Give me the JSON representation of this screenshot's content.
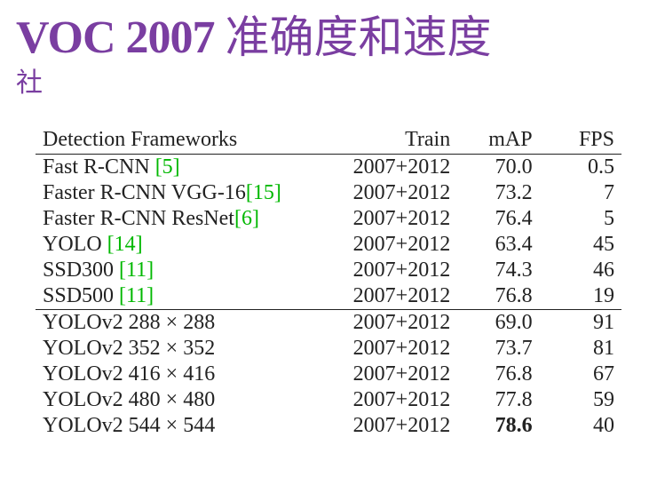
{
  "title": {
    "main": "VOC 2007",
    "rest": "准确度和速度",
    "subtitle_fragment": "社",
    "color": "#7a3ea1",
    "main_fontsize": 52,
    "rest_fontsize": 50
  },
  "table": {
    "font_family": "Times New Roman",
    "fontsize": 24,
    "text_color": "#222222",
    "cite_color": "#00b800",
    "rule_color": "#222222",
    "columns": [
      {
        "key": "framework",
        "label": "Detection Frameworks",
        "align": "left"
      },
      {
        "key": "train",
        "label": "Train",
        "align": "right"
      },
      {
        "key": "map",
        "label": "mAP",
        "align": "right"
      },
      {
        "key": "fps",
        "label": "FPS",
        "align": "right"
      }
    ],
    "groups": [
      {
        "rows": [
          {
            "framework": "Fast R-CNN ",
            "cite": "[5]",
            "train": "2007+2012",
            "map": "70.0",
            "fps": "0.5"
          },
          {
            "framework": "Faster R-CNN VGG-16",
            "cite": "[15]",
            "train": "2007+2012",
            "map": "73.2",
            "fps": "7"
          },
          {
            "framework": "Faster R-CNN ResNet",
            "cite": "[6]",
            "train": "2007+2012",
            "map": "76.4",
            "fps": "5"
          },
          {
            "framework": "YOLO ",
            "cite": "[14]",
            "train": "2007+2012",
            "map": "63.4",
            "fps": "45"
          },
          {
            "framework": "SSD300 ",
            "cite": "[11]",
            "train": "2007+2012",
            "map": "74.3",
            "fps": "46"
          },
          {
            "framework": "SSD500 ",
            "cite": "[11]",
            "train": "2007+2012",
            "map": "76.8",
            "fps": "19"
          }
        ]
      },
      {
        "rows": [
          {
            "framework": "YOLOv2 288 × 288",
            "cite": "",
            "train": "2007+2012",
            "map": "69.0",
            "fps": "91"
          },
          {
            "framework": "YOLOv2 352 × 352",
            "cite": "",
            "train": "2007+2012",
            "map": "73.7",
            "fps": "81"
          },
          {
            "framework": "YOLOv2 416 × 416",
            "cite": "",
            "train": "2007+2012",
            "map": "76.8",
            "fps": "67"
          },
          {
            "framework": "YOLOv2 480 × 480",
            "cite": "",
            "train": "2007+2012",
            "map": "77.8",
            "fps": "59"
          },
          {
            "framework": "YOLOv2 544 × 544",
            "cite": "",
            "train": "2007+2012",
            "map": "78.6",
            "map_bold": true,
            "fps": "40"
          }
        ]
      }
    ]
  }
}
